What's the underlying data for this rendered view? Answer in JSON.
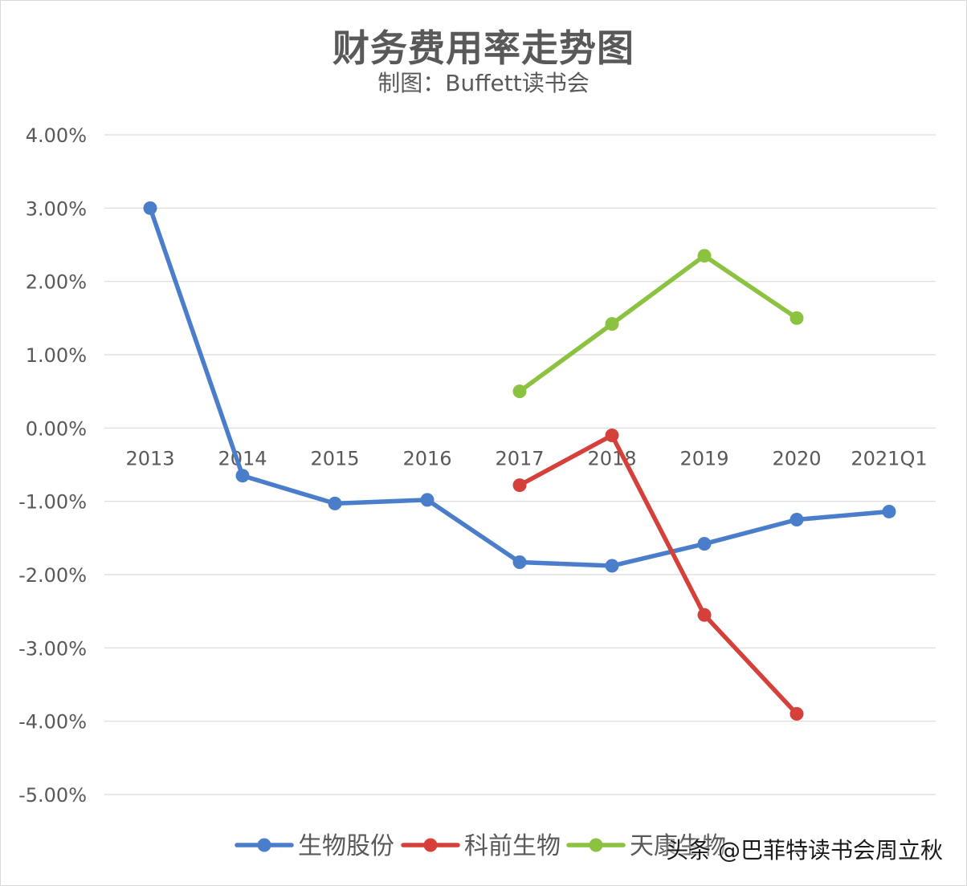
{
  "chart_data": {
    "type": "line",
    "title": "财务费用率走势图",
    "subtitle": "制图：Buffett读书会",
    "categories": [
      "2013",
      "2014",
      "2015",
      "2016",
      "2017",
      "2018",
      "2019",
      "2020",
      "2021Q1"
    ],
    "y_ticks": [
      "4.00%",
      "3.00%",
      "2.00%",
      "1.00%",
      "0.00%",
      "-1.00%",
      "-2.00%",
      "-3.00%",
      "-4.00%",
      "-5.00%"
    ],
    "ylim": [
      -5,
      4
    ],
    "grid": true,
    "legend_position": "bottom",
    "series": [
      {
        "name": "生物股份",
        "color": "#4a7ecb",
        "values": [
          3.0,
          -0.65,
          -1.03,
          -0.98,
          -1.83,
          -1.88,
          -1.58,
          -1.25,
          -1.14
        ]
      },
      {
        "name": "科前生物",
        "color": "#d6403a",
        "values": [
          null,
          null,
          null,
          null,
          -0.78,
          -0.1,
          -2.55,
          -3.9,
          null
        ]
      },
      {
        "name": "天康生物",
        "color": "#8bc23f",
        "values": [
          null,
          null,
          null,
          null,
          0.5,
          1.42,
          2.35,
          1.5,
          null
        ]
      }
    ]
  },
  "watermark": "头条 @巴菲特读书会周立秋"
}
